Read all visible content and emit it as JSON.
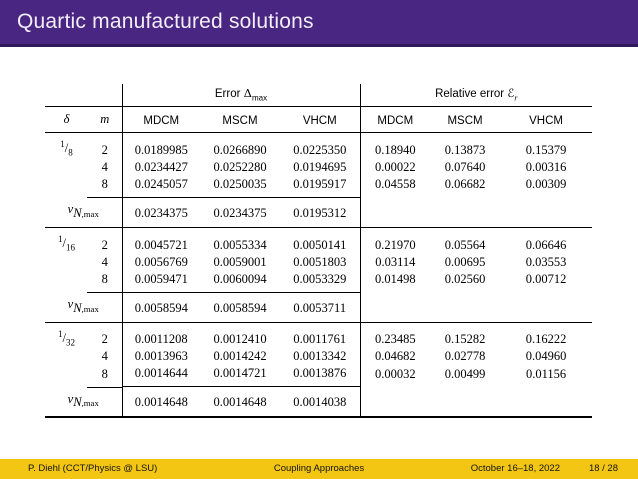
{
  "slide": {
    "title": "Quartic manufactured solutions",
    "colors": {
      "header_purple": "#4A2683",
      "header_purple_dark": "#32195C",
      "footer_gold": "#F3C614"
    }
  },
  "table": {
    "group_headers": {
      "error": {
        "prefix": "Error",
        "symbol": "Δ",
        "sub": "max"
      },
      "relative": {
        "prefix": "Relative error",
        "symbol": "ℰ",
        "sub": "r"
      }
    },
    "col_headers": {
      "delta": "δ",
      "m": "m",
      "methods": [
        "MDCM",
        "MSCM",
        "VHCM"
      ]
    },
    "vn_label": {
      "base": "v",
      "sub_italic": "N",
      "sub_rest": ",max"
    },
    "blocks": [
      {
        "delta": "1/8",
        "rows": [
          {
            "m": "2",
            "error": [
              "0.0189985",
              "0.0266890",
              "0.0225350"
            ],
            "relative": [
              "0.18940",
              "0.13873",
              "0.15379"
            ]
          },
          {
            "m": "4",
            "error": [
              "0.0234427",
              "0.0252280",
              "0.0194695"
            ],
            "relative": [
              "0.00022",
              "0.07640",
              "0.00316"
            ]
          },
          {
            "m": "8",
            "error": [
              "0.0245057",
              "0.0250035",
              "0.0195917"
            ],
            "relative": [
              "0.04558",
              "0.06682",
              "0.00309"
            ]
          }
        ],
        "vn": [
          "0.0234375",
          "0.0234375",
          "0.0195312"
        ]
      },
      {
        "delta": "1/16",
        "rows": [
          {
            "m": "2",
            "error": [
              "0.0045721",
              "0.0055334",
              "0.0050141"
            ],
            "relative": [
              "0.21970",
              "0.05564",
              "0.06646"
            ]
          },
          {
            "m": "4",
            "error": [
              "0.0056769",
              "0.0059001",
              "0.0051803"
            ],
            "relative": [
              "0.03114",
              "0.00695",
              "0.03553"
            ]
          },
          {
            "m": "8",
            "error": [
              "0.0059471",
              "0.0060094",
              "0.0053329"
            ],
            "relative": [
              "0.01498",
              "0.02560",
              "0.00712"
            ]
          }
        ],
        "vn": [
          "0.0058594",
          "0.0058594",
          "0.0053711"
        ]
      },
      {
        "delta": "1/32",
        "rows": [
          {
            "m": "2",
            "error": [
              "0.0011208",
              "0.0012410",
              "0.0011761"
            ],
            "relative": [
              "0.23485",
              "0.15282",
              "0.16222"
            ]
          },
          {
            "m": "4",
            "error": [
              "0.0013963",
              "0.0014242",
              "0.0013342"
            ],
            "relative": [
              "0.04682",
              "0.02778",
              "0.04960"
            ]
          },
          {
            "m": "8",
            "error": [
              "0.0014644",
              "0.0014721",
              "0.0013876"
            ],
            "relative": [
              "0.00032",
              "0.00499",
              "0.01156"
            ]
          }
        ],
        "vn": [
          "0.0014648",
          "0.0014648",
          "0.0014038"
        ]
      }
    ]
  },
  "footer": {
    "author": "P. Diehl  (CCT/Physics @ LSU)",
    "talk_title": "Coupling Approaches",
    "date": "October 16–18, 2022",
    "page": "18 / 28"
  }
}
